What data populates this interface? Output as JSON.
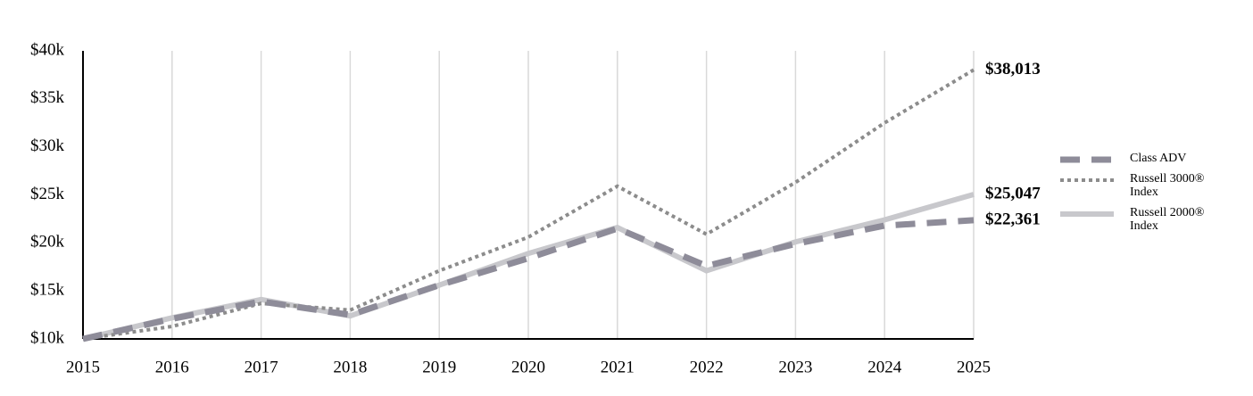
{
  "chart_data": {
    "type": "line",
    "x": [
      2015,
      2016,
      2017,
      2018,
      2019,
      2020,
      2021,
      2022,
      2023,
      2024,
      2025
    ],
    "xlim": [
      2015,
      2025
    ],
    "xticks": [
      2015,
      2016,
      2017,
      2018,
      2019,
      2020,
      2021,
      2022,
      2023,
      2024,
      2025
    ],
    "ylim": [
      10000,
      40000
    ],
    "yticks": [
      {
        "value": 10000,
        "label": "$10k"
      },
      {
        "value": 15000,
        "label": "$15k"
      },
      {
        "value": 20000,
        "label": "$20k"
      },
      {
        "value": 25000,
        "label": "$25k"
      },
      {
        "value": 30000,
        "label": "$30k"
      },
      {
        "value": 35000,
        "label": "$35k"
      },
      {
        "value": 40000,
        "label": "$40k"
      }
    ],
    "grid": true,
    "legend": "right",
    "series": [
      {
        "name": "Class ADV",
        "color": "#8e8c99",
        "line_style": "dashed",
        "values": [
          10000,
          12100,
          13900,
          12500,
          15600,
          18400,
          21500,
          17600,
          19900,
          21800,
          22361
        ],
        "value_labels": [
          null,
          null,
          null,
          null,
          null,
          null,
          null,
          null,
          null,
          null,
          "$22,361"
        ]
      },
      {
        "name": "Russell 3000® Index",
        "color": "#8c8c8c",
        "line_style": "dotted",
        "values": [
          10000,
          11300,
          13700,
          13000,
          17100,
          20600,
          25900,
          20900,
          26300,
          32500,
          38013
        ],
        "value_labels": [
          null,
          null,
          null,
          null,
          null,
          null,
          null,
          null,
          null,
          null,
          "$38,013"
        ]
      },
      {
        "name": "Russell 2000® Index",
        "color": "#c8c8cc",
        "line_style": "solid",
        "values": [
          10000,
          12200,
          14100,
          12400,
          15600,
          18900,
          21600,
          17100,
          20100,
          22400,
          25047
        ],
        "value_labels": [
          null,
          null,
          null,
          null,
          null,
          null,
          null,
          null,
          null,
          null,
          "$25,047"
        ]
      }
    ]
  }
}
